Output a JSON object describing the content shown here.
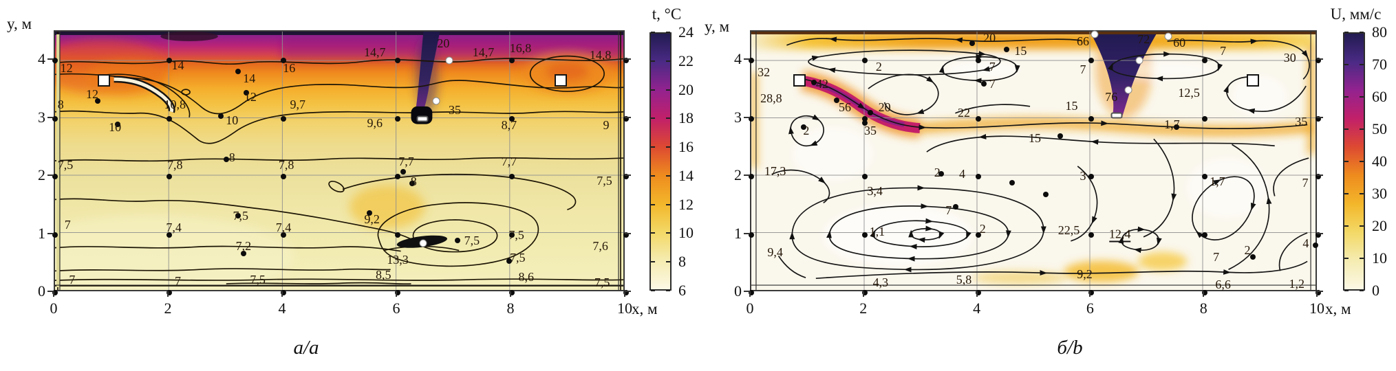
{
  "colormap": [
    "#fcf8e5",
    "#f5ecb2",
    "#f3d967",
    "#f3b72b",
    "#ee8c1e",
    "#dd4a31",
    "#c22069",
    "#93228f",
    "#4b2a85",
    "#221c52"
  ],
  "chart_data": [
    {
      "type": "heatmap",
      "panel": "a",
      "field": "temperature contour field with measured values",
      "caption": "a/a",
      "xlabel": "x, м",
      "ylabel": "y, м",
      "xlim": [
        0,
        10
      ],
      "ylim": [
        0,
        4.5
      ],
      "x_ticks": [
        "0",
        "2",
        "4",
        "6",
        "8",
        "10"
      ],
      "y_ticks": [
        "4",
        "3",
        "2",
        "1",
        "0"
      ],
      "grid": true,
      "colorbar": {
        "title": "t, °C",
        "min": 6,
        "max": 24,
        "ticks": [
          "24",
          "22",
          "20",
          "18",
          "16",
          "14",
          "12",
          "10",
          "8",
          "6"
        ]
      },
      "point_labels": [
        {
          "x": 0.2,
          "y": 3.88,
          "t": "12"
        },
        {
          "x": 2.15,
          "y": 3.92,
          "t": "14"
        },
        {
          "x": 3.4,
          "y": 3.7,
          "t": "14"
        },
        {
          "x": 4.1,
          "y": 3.88,
          "t": "16"
        },
        {
          "x": 5.6,
          "y": 4.15,
          "t": "14,7"
        },
        {
          "x": 6.8,
          "y": 4.3,
          "t": "20"
        },
        {
          "x": 7.5,
          "y": 4.15,
          "t": "14,7"
        },
        {
          "x": 8.15,
          "y": 4.22,
          "t": "16,8"
        },
        {
          "x": 9.55,
          "y": 4.1,
          "t": "14,8"
        },
        {
          "x": 0.65,
          "y": 3.42,
          "t": "12"
        },
        {
          "x": 0.1,
          "y": 3.25,
          "t": "8"
        },
        {
          "x": 2.1,
          "y": 3.25,
          "t": "10,8"
        },
        {
          "x": 3.42,
          "y": 3.38,
          "t": "12"
        },
        {
          "x": 1.05,
          "y": 2.86,
          "t": "10"
        },
        {
          "x": 3.1,
          "y": 2.97,
          "t": "10"
        },
        {
          "x": 4.25,
          "y": 3.25,
          "t": "9,7"
        },
        {
          "x": 5.6,
          "y": 2.93,
          "t": "9,6"
        },
        {
          "x": 7.0,
          "y": 3.15,
          "t": "35"
        },
        {
          "x": 7.95,
          "y": 2.89,
          "t": "8,7"
        },
        {
          "x": 9.65,
          "y": 2.89,
          "t": "9"
        },
        {
          "x": 0.18,
          "y": 2.2,
          "t": "7,5"
        },
        {
          "x": 2.1,
          "y": 2.2,
          "t": "7,8"
        },
        {
          "x": 3.1,
          "y": 2.33,
          "t": "8"
        },
        {
          "x": 4.05,
          "y": 2.2,
          "t": "7,8"
        },
        {
          "x": 6.15,
          "y": 2.26,
          "t": "7,7"
        },
        {
          "x": 6.28,
          "y": 1.92,
          "t": "8"
        },
        {
          "x": 7.95,
          "y": 2.26,
          "t": "7,7"
        },
        {
          "x": 9.62,
          "y": 1.93,
          "t": "7,5"
        },
        {
          "x": 0.22,
          "y": 1.17,
          "t": "7"
        },
        {
          "x": 2.08,
          "y": 1.13,
          "t": "7,4"
        },
        {
          "x": 3.25,
          "y": 1.33,
          "t": "7,5"
        },
        {
          "x": 4.0,
          "y": 1.13,
          "t": "7,4"
        },
        {
          "x": 5.55,
          "y": 1.27,
          "t": "9,2"
        },
        {
          "x": 3.3,
          "y": 0.8,
          "t": "7,2"
        },
        {
          "x": 7.3,
          "y": 0.9,
          "t": "7,5"
        },
        {
          "x": 8.08,
          "y": 1.0,
          "t": "7,5"
        },
        {
          "x": 8.1,
          "y": 0.6,
          "t": "7,5"
        },
        {
          "x": 9.55,
          "y": 0.8,
          "t": "7,6"
        },
        {
          "x": 6.0,
          "y": 0.57,
          "t": "13,3"
        },
        {
          "x": 5.75,
          "y": 0.31,
          "t": "8,5"
        },
        {
          "x": 8.25,
          "y": 0.27,
          "t": "8,6"
        },
        {
          "x": 0.3,
          "y": 0.22,
          "t": "7"
        },
        {
          "x": 2.15,
          "y": 0.2,
          "t": "7"
        },
        {
          "x": 3.55,
          "y": 0.22,
          "t": "7,5"
        },
        {
          "x": 9.58,
          "y": 0.18,
          "t": "7,5"
        }
      ],
      "grid_dots_x": [
        0,
        2,
        4,
        6,
        8,
        10
      ],
      "grid_dots_y": [
        0,
        1,
        2,
        3,
        4
      ],
      "extra_dots": [
        [
          3.2,
          3.82
        ],
        [
          3.35,
          3.45
        ],
        [
          2.9,
          3.05
        ],
        [
          0.75,
          3.3
        ],
        [
          1.1,
          2.9
        ],
        [
          3.0,
          2.3
        ],
        [
          6.25,
          1.88
        ],
        [
          6.1,
          2.08
        ],
        [
          3.2,
          1.33
        ],
        [
          5.5,
          1.38
        ],
        [
          3.3,
          0.67
        ],
        [
          7.05,
          0.9
        ],
        [
          7.95,
          0.55
        ]
      ],
      "markers": [
        {
          "type": "inlet-square",
          "x": 0.85,
          "y": 3.66
        },
        {
          "type": "inlet-square",
          "x": 8.85,
          "y": 3.66
        },
        {
          "type": "jet-dot",
          "x": 6.9,
          "y": 4.0
        },
        {
          "type": "jet-dot",
          "x": 6.68,
          "y": 3.3
        },
        {
          "type": "outlet-slot",
          "x": 6.43,
          "y": 3.0
        },
        {
          "type": "jet-dot",
          "x": 6.45,
          "y": 0.85
        }
      ]
    },
    {
      "type": "heatmap",
      "panel": "b",
      "field": "velocity magnitude with streamlines and measured values",
      "caption": "б/b",
      "xlabel": "x, м",
      "ylabel": "y, м",
      "xlim": [
        0,
        10
      ],
      "ylim": [
        0,
        4.5
      ],
      "x_ticks": [
        "0",
        "2",
        "4",
        "6",
        "8",
        "10"
      ],
      "y_ticks": [
        "4",
        "3",
        "2",
        "1",
        "0"
      ],
      "grid": true,
      "colorbar": {
        "title": "U, мм/с",
        "min": 0,
        "max": 80,
        "ticks": [
          "80",
          "70",
          "60",
          "50",
          "40",
          "30",
          "20",
          "10",
          "0"
        ]
      },
      "point_labels": [
        {
          "x": 4.2,
          "y": 4.4,
          "t": "20"
        },
        {
          "x": 4.75,
          "y": 4.17,
          "t": "15"
        },
        {
          "x": 5.85,
          "y": 4.34,
          "t": "66"
        },
        {
          "x": 6.92,
          "y": 4.37,
          "t": "72"
        },
        {
          "x": 7.55,
          "y": 4.31,
          "t": "60"
        },
        {
          "x": 8.32,
          "y": 4.17,
          "t": "7"
        },
        {
          "x": 9.5,
          "y": 4.05,
          "t": "30"
        },
        {
          "x": 0.22,
          "y": 3.8,
          "t": "32"
        },
        {
          "x": 1.25,
          "y": 3.6,
          "t": "42"
        },
        {
          "x": 0.35,
          "y": 3.35,
          "t": "28,8"
        },
        {
          "x": 1.65,
          "y": 3.2,
          "t": "56"
        },
        {
          "x": 2.35,
          "y": 3.2,
          "t": "20"
        },
        {
          "x": 2.1,
          "y": 2.8,
          "t": "35"
        },
        {
          "x": 2.25,
          "y": 3.9,
          "t": "2"
        },
        {
          "x": 4.25,
          "y": 3.9,
          "t": "7"
        },
        {
          "x": 4.25,
          "y": 3.6,
          "t": "7"
        },
        {
          "x": 5.85,
          "y": 3.85,
          "t": "7"
        },
        {
          "x": 6.35,
          "y": 3.38,
          "t": "76"
        },
        {
          "x": 7.72,
          "y": 3.45,
          "t": "12,5"
        },
        {
          "x": 3.75,
          "y": 3.1,
          "t": "22"
        },
        {
          "x": 5.65,
          "y": 3.22,
          "t": "15"
        },
        {
          "x": 5.0,
          "y": 2.66,
          "t": "15"
        },
        {
          "x": 7.42,
          "y": 2.9,
          "t": "1,7"
        },
        {
          "x": 9.7,
          "y": 2.95,
          "t": "35"
        },
        {
          "x": 0.97,
          "y": 2.8,
          "t": "2"
        },
        {
          "x": 0.42,
          "y": 2.1,
          "t": "17,3"
        },
        {
          "x": 3.28,
          "y": 2.07,
          "t": "2"
        },
        {
          "x": 3.72,
          "y": 2.05,
          "t": "4"
        },
        {
          "x": 5.85,
          "y": 2.02,
          "t": "3"
        },
        {
          "x": 8.22,
          "y": 1.92,
          "t": "1,7"
        },
        {
          "x": 9.77,
          "y": 1.9,
          "t": "7"
        },
        {
          "x": 2.18,
          "y": 1.75,
          "t": "3,4"
        },
        {
          "x": 3.48,
          "y": 1.42,
          "t": "7"
        },
        {
          "x": 2.22,
          "y": 1.05,
          "t": "1,1"
        },
        {
          "x": 4.08,
          "y": 1.1,
          "t": "2"
        },
        {
          "x": 5.6,
          "y": 1.08,
          "t": "22,5"
        },
        {
          "x": 6.5,
          "y": 1.0,
          "t": "12,4",
          "u": true
        },
        {
          "x": 0.42,
          "y": 0.7,
          "t": "9,4"
        },
        {
          "x": 8.75,
          "y": 0.73,
          "t": "2"
        },
        {
          "x": 9.78,
          "y": 0.85,
          "t": "4"
        },
        {
          "x": 5.88,
          "y": 0.32,
          "t": "9,2"
        },
        {
          "x": 8.2,
          "y": 0.62,
          "t": "7"
        },
        {
          "x": 2.28,
          "y": 0.18,
          "t": "4,3"
        },
        {
          "x": 3.75,
          "y": 0.22,
          "t": "5,8"
        },
        {
          "x": 8.32,
          "y": 0.14,
          "t": "6,6"
        },
        {
          "x": 9.62,
          "y": 0.15,
          "t": "1,2"
        }
      ],
      "grid_dots_x": [
        0,
        2,
        4,
        6,
        8,
        10
      ],
      "grid_dots_y": [
        0,
        1,
        2,
        3,
        4
      ],
      "extra_dots": [
        [
          1.1,
          3.62
        ],
        [
          1.5,
          3.32
        ],
        [
          2.0,
          2.93
        ],
        [
          2.1,
          3.1
        ],
        [
          0.92,
          2.85
        ],
        [
          3.9,
          4.3
        ],
        [
          4.5,
          4.2
        ],
        [
          4.1,
          3.6
        ],
        [
          5.45,
          2.7
        ],
        [
          3.35,
          2.05
        ],
        [
          5.2,
          1.7
        ],
        [
          3.6,
          1.48
        ],
        [
          8.85,
          0.62
        ],
        [
          9.95,
          0.82
        ],
        [
          4.6,
          1.9
        ],
        [
          7.5,
          2.85
        ]
      ],
      "markers": [
        {
          "type": "inlet-square",
          "x": 0.85,
          "y": 3.66
        },
        {
          "type": "inlet-square",
          "x": 8.85,
          "y": 3.66
        },
        {
          "type": "jet-dot",
          "x": 6.05,
          "y": 4.45
        },
        {
          "type": "jet-dot",
          "x": 7.35,
          "y": 4.42
        },
        {
          "type": "jet-dot",
          "x": 6.85,
          "y": 4.0
        },
        {
          "type": "jet-dot",
          "x": 6.65,
          "y": 3.5
        },
        {
          "type": "outlet-slot",
          "x": 6.45,
          "y": 3.06
        }
      ]
    }
  ]
}
